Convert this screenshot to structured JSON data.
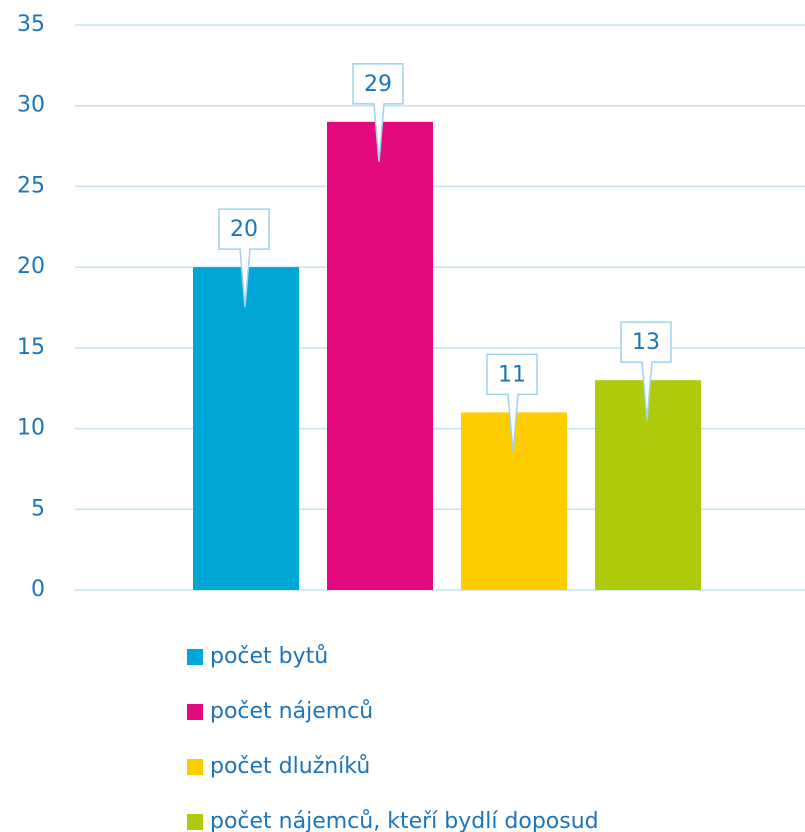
{
  "chart_data": {
    "type": "bar",
    "categories": [
      null
    ],
    "series": [
      {
        "name": "počet bytů",
        "color": "#00a6d6",
        "values": [
          20
        ]
      },
      {
        "name": "počet nájemců",
        "color": "#e5097f",
        "values": [
          29
        ]
      },
      {
        "name": "počet dlužníků",
        "color": "#ffcc00",
        "values": [
          11
        ]
      },
      {
        "name": "počet nájemců, kteří bydlí doposud",
        "color": "#afca0b",
        "values": [
          13
        ]
      }
    ],
    "ylim": [
      0,
      35
    ],
    "yticks": [
      0,
      5,
      10,
      15,
      20,
      25,
      30,
      35
    ],
    "grid": true,
    "legend": "bottom"
  }
}
